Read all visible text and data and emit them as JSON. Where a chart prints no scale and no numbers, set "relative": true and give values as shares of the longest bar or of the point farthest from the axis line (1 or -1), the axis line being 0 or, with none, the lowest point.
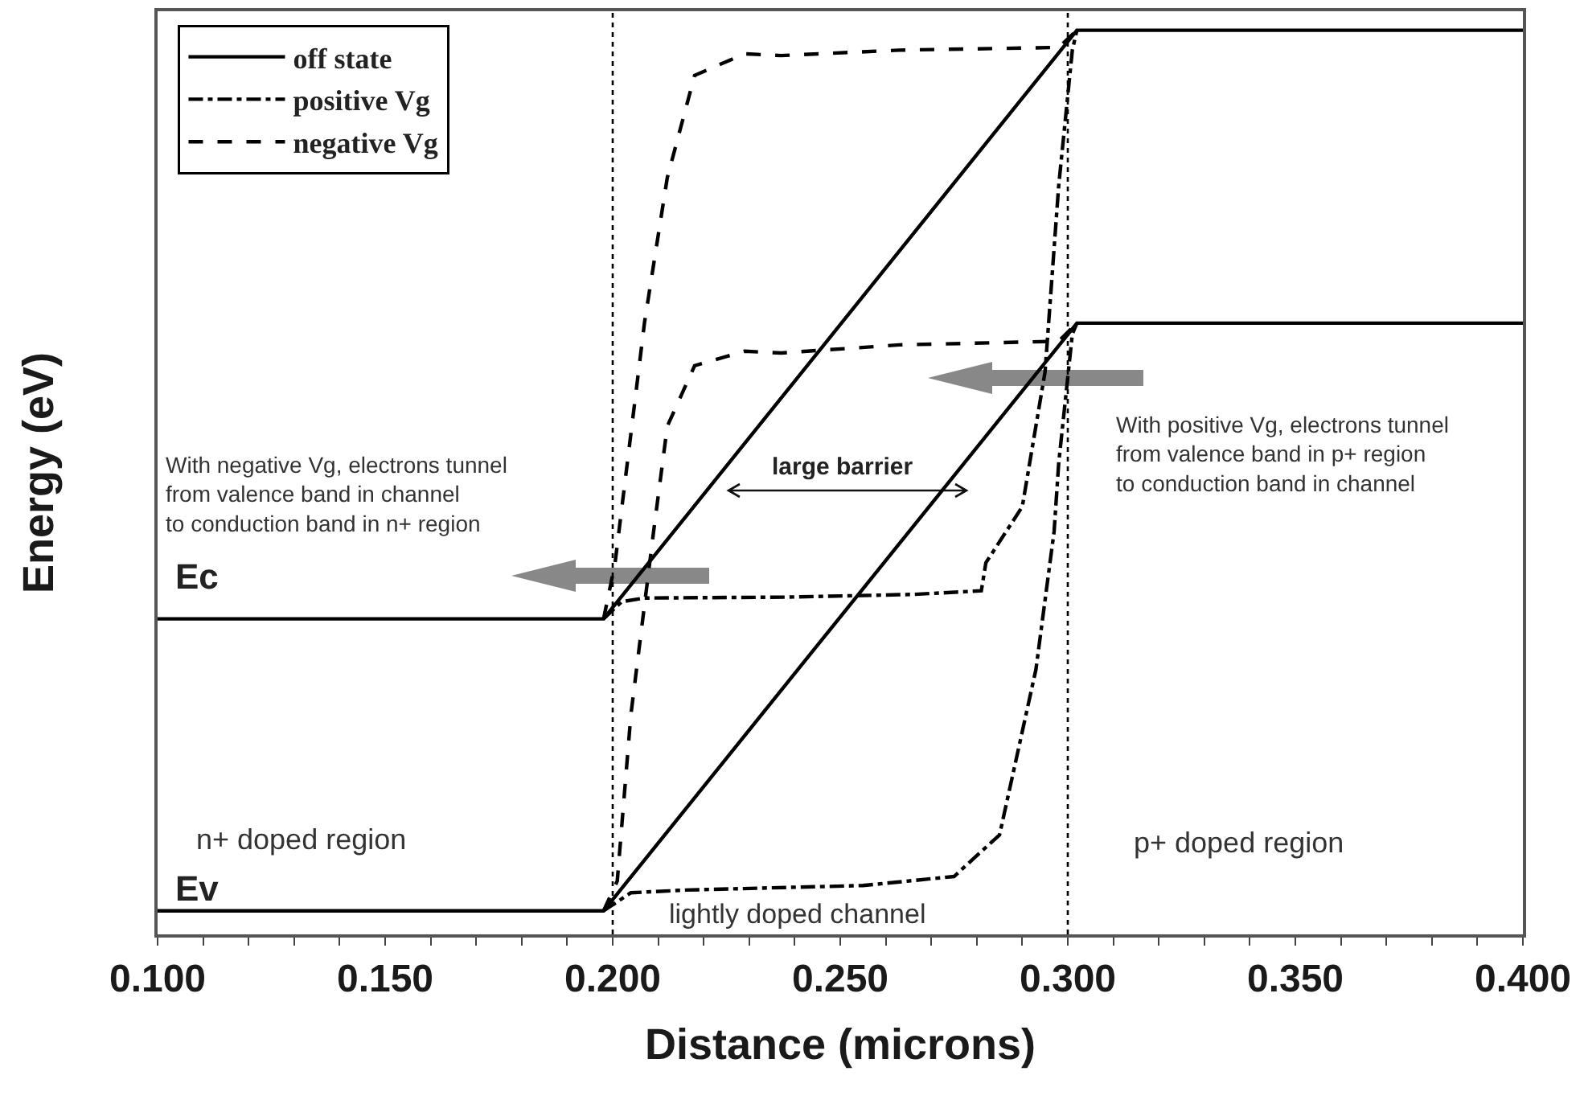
{
  "chart_data": {
    "type": "line",
    "xlabel": "Distance (microns)",
    "ylabel": "Energy (eV)",
    "relative": true,
    "tick_labels": "x",
    "legend": "top left",
    "xlim": [
      0.1,
      0.4
    ],
    "xticks": [
      {
        "value": 0.1,
        "label": "0.100"
      },
      {
        "value": 0.11,
        "label": null
      },
      {
        "value": 0.12,
        "label": null
      },
      {
        "value": 0.13,
        "label": null
      },
      {
        "value": 0.14,
        "label": null
      },
      {
        "value": 0.15,
        "label": "0.150"
      },
      {
        "value": 0.16,
        "label": null
      },
      {
        "value": 0.17,
        "label": null
      },
      {
        "value": 0.18,
        "label": null
      },
      {
        "value": 0.19,
        "label": null
      },
      {
        "value": 0.2,
        "label": "0.200"
      },
      {
        "value": 0.21,
        "label": null
      },
      {
        "value": 0.22,
        "label": null
      },
      {
        "value": 0.23,
        "label": null
      },
      {
        "value": 0.24,
        "label": null
      },
      {
        "value": 0.25,
        "label": "0.250"
      },
      {
        "value": 0.26,
        "label": null
      },
      {
        "value": 0.27,
        "label": null
      },
      {
        "value": 0.28,
        "label": null
      },
      {
        "value": 0.29,
        "label": null
      },
      {
        "value": 0.3,
        "label": "0.300"
      },
      {
        "value": 0.31,
        "label": null
      },
      {
        "value": 0.32,
        "label": null
      },
      {
        "value": 0.33,
        "label": null
      },
      {
        "value": 0.34,
        "label": null
      },
      {
        "value": 0.35,
        "label": "0.350"
      },
      {
        "value": 0.36,
        "label": null
      },
      {
        "value": 0.37,
        "label": null
      },
      {
        "value": 0.38,
        "label": null
      },
      {
        "value": 0.39,
        "label": null
      },
      {
        "value": 0.4,
        "label": "0.400"
      }
    ],
    "series": [
      {
        "name": "off state",
        "line_style": "solid",
        "color": "#000000",
        "x": [
          0.1,
          0.198,
          0.302,
          0.4
        ],
        "values": [
          0.349,
          0.349,
          1,
          1
        ]
      },
      {
        "line_style": "solid",
        "color": "#000000",
        "x": [
          0.1,
          0.198,
          0.302,
          0.4
        ],
        "values": [
          0.026,
          0.026,
          0.676,
          0.676
        ]
      },
      {
        "name": "positive Vg",
        "line_style": "dashdot",
        "color": "#000000",
        "x": [
          0.198,
          0.202,
          0.207,
          0.238,
          0.266,
          0.281,
          0.282,
          0.29,
          0.295,
          0.298,
          0.301,
          0.302
        ],
        "values": [
          0.349,
          0.368,
          0.372,
          0.373,
          0.376,
          0.38,
          0.411,
          0.473,
          0.622,
          0.828,
          0.978,
          1
        ]
      },
      {
        "line_style": "dashdot",
        "color": "#000000",
        "x": [
          0.198,
          0.204,
          0.216,
          0.255,
          0.275,
          0.285,
          0.293,
          0.297,
          0.298,
          0.301,
          0.302
        ],
        "values": [
          0.026,
          0.046,
          0.049,
          0.054,
          0.064,
          0.11,
          0.293,
          0.446,
          0.521,
          0.664,
          0.676
        ]
      },
      {
        "name": "negative Vg",
        "line_style": "dashed",
        "color": "#000000",
        "x": [
          0.198,
          0.2005,
          0.207,
          0.212,
          0.218,
          0.229,
          0.237,
          0.263,
          0.298,
          0.302
        ],
        "values": [
          0.349,
          0.41,
          0.677,
          0.837,
          0.95,
          0.974,
          0.972,
          0.978,
          0.981,
          1
        ]
      },
      {
        "line_style": "dashed",
        "color": "#000000",
        "x": [
          0.198,
          0.201,
          0.204,
          0.209,
          0.212,
          0.218,
          0.229,
          0.237,
          0.263,
          0.298,
          0.302
        ],
        "values": [
          0.026,
          0.059,
          0.243,
          0.446,
          0.562,
          0.629,
          0.645,
          0.643,
          0.652,
          0.656,
          0.676
        ]
      }
    ],
    "ref_lines": [
      {
        "axis": "x",
        "value": 0.2,
        "line_style": "dotted",
        "color": "#000000"
      },
      {
        "axis": "x",
        "value": 0.3,
        "line_style": "dotted",
        "color": "#000000"
      }
    ],
    "annotations": [
      "Ec",
      "Ev",
      "n+ doped region",
      "p+ doped region",
      "lightly doped channel",
      "large barrier",
      "With negative Vg, electrons tunnel\nfrom valence band in channel\nto conduction band in n+ region",
      "With positive Vg, electrons tunnel\nfrom valence band in p+ region\nto conduction band in channel"
    ]
  }
}
